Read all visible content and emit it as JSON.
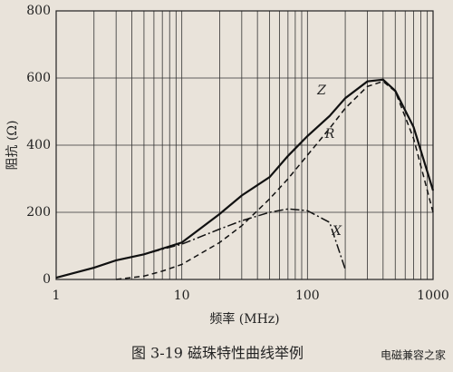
{
  "chart_data": {
    "type": "line",
    "x": [
      1,
      2,
      3,
      5,
      7,
      10,
      20,
      30,
      50,
      70,
      100,
      150,
      200,
      300,
      400,
      500,
      700,
      1000
    ],
    "series": [
      {
        "name": "Z",
        "color": "#111",
        "dash": "none",
        "values": [
          5,
          35,
          57,
          75,
          92,
          110,
          195,
          250,
          305,
          368,
          427,
          487,
          540,
          590,
          595,
          562,
          454,
          265
        ]
      },
      {
        "name": "R",
        "color": "#111",
        "dash": "6 4",
        "values": [
          null,
          null,
          0,
          10,
          25,
          45,
          110,
          160,
          240,
          300,
          370,
          450,
          510,
          575,
          590,
          560,
          420,
          200
        ]
      },
      {
        "name": "X",
        "color": "#111",
        "dash": "10 3 2 3",
        "values": [
          5,
          35,
          57,
          75,
          90,
          105,
          150,
          175,
          200,
          210,
          205,
          170,
          30,
          null,
          null,
          null,
          null,
          null
        ]
      }
    ],
    "xlim": [
      1,
      1000
    ],
    "ylim": [
      0,
      800
    ],
    "xscale": "log",
    "xticks": [
      1,
      10,
      100,
      1000
    ],
    "yticks": [
      0,
      200,
      400,
      600,
      800
    ],
    "grid": true,
    "xlabel": "频率 (MHz)",
    "ylabel": "阻抗 (Ω)",
    "caption": "图 3-19    磁珠特性曲线举例",
    "watermark": "电磁兼容之家"
  }
}
